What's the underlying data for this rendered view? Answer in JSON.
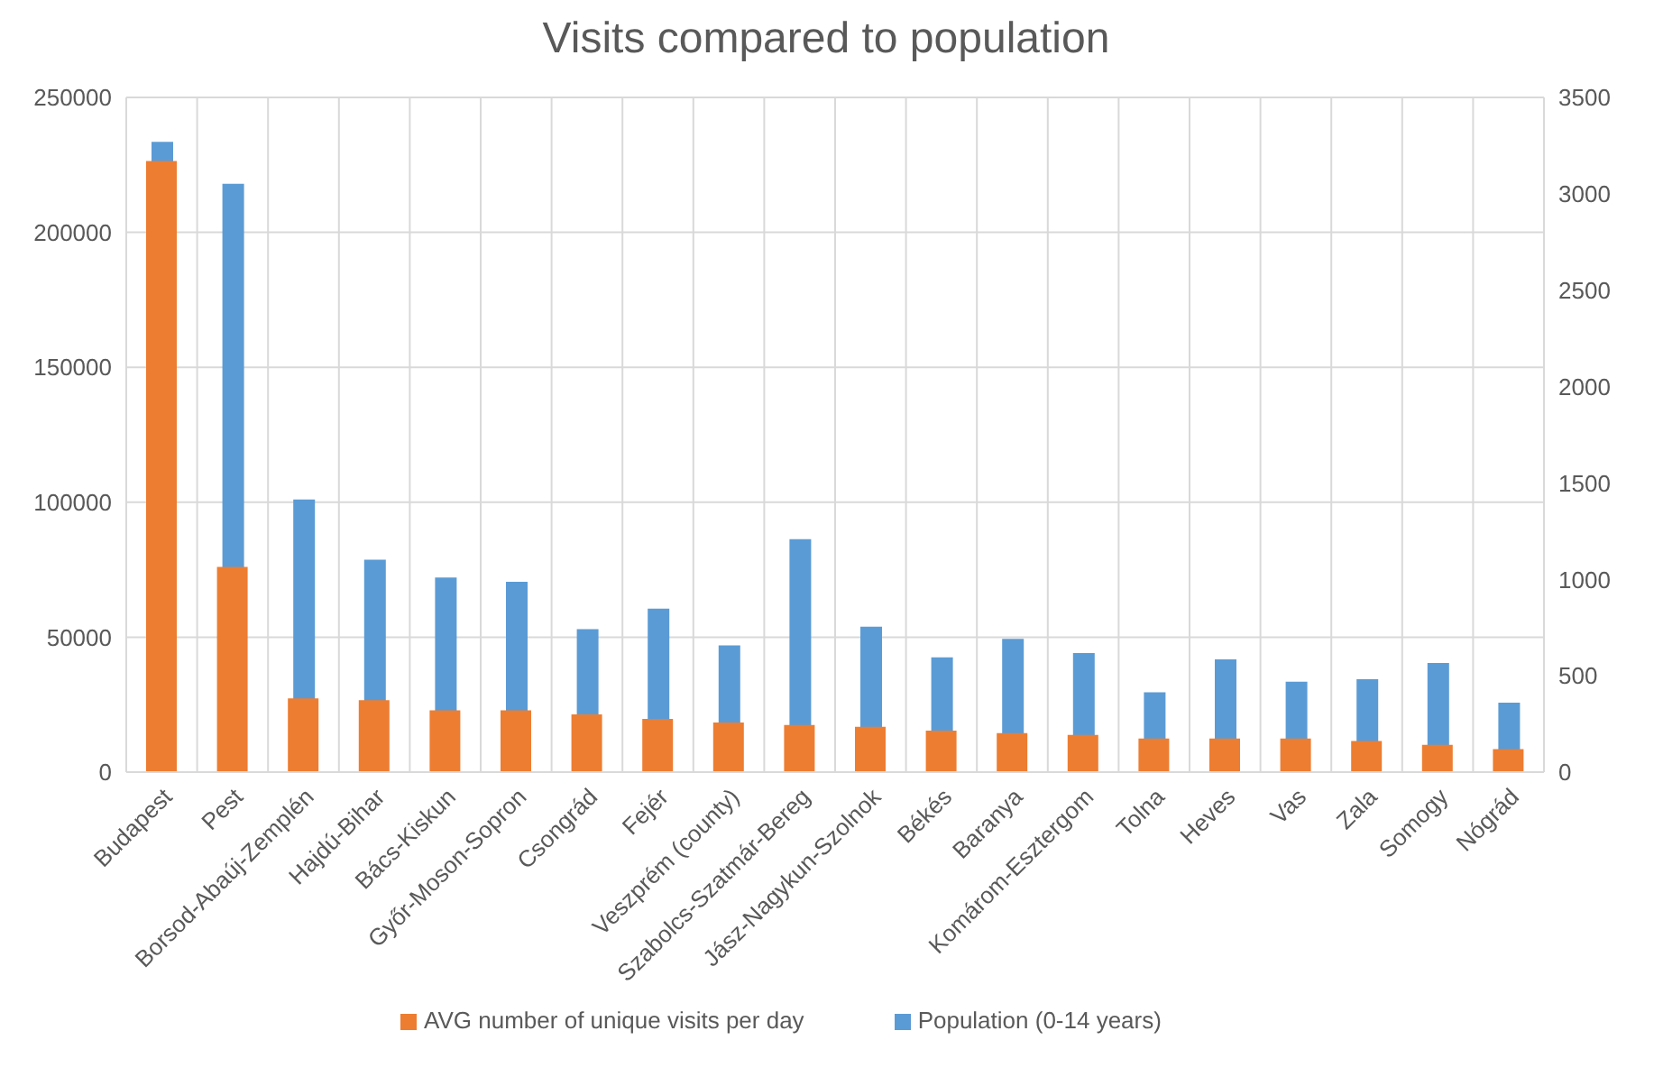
{
  "chart_data": {
    "type": "bar",
    "title": "Visits compared to population",
    "categories": [
      "Budapest",
      "Pest",
      "Borsod-Abaúj-Zemplén",
      "Hajdú-Bihar",
      "Bács-Kiskun",
      "Győr-Moson-Sopron",
      "Csongrád",
      "Fejér",
      "Veszprém (county)",
      "Szabolcs-Szatmár-Bereg",
      "Jász-Nagykun-Szolnok",
      "Békés",
      "Baranya",
      "Komárom-Esztergom",
      "Tolna",
      "Heves",
      "Vas",
      "Zala",
      "Somogy",
      "Nógrád"
    ],
    "series": [
      {
        "name": "Population (0-14 years)",
        "color": "#5b9bd5",
        "values": [
          233500,
          218000,
          101000,
          78700,
          72100,
          70500,
          53000,
          60600,
          47000,
          86300,
          53900,
          42500,
          49400,
          44100,
          29600,
          41800,
          33500,
          34400,
          40400,
          25700
        ]
      },
      {
        "name": "AVG number of unique visits per day",
        "color": "#ed7d31",
        "axis": "y2",
        "values": [
          3170,
          1065,
          383,
          373,
          321,
          321,
          299,
          276,
          257,
          244,
          235,
          215,
          202,
          193,
          174,
          174,
          174,
          161,
          141,
          119
        ]
      }
    ],
    "ylim": [
      0,
      250000
    ],
    "yticks": [
      0,
      50000,
      100000,
      150000,
      200000,
      250000
    ],
    "y2lim": [
      0,
      3500
    ],
    "y2ticks": [
      0,
      500,
      1000,
      1500,
      2000,
      2500,
      3000,
      3500
    ],
    "grid": true,
    "legend": "bottom"
  }
}
